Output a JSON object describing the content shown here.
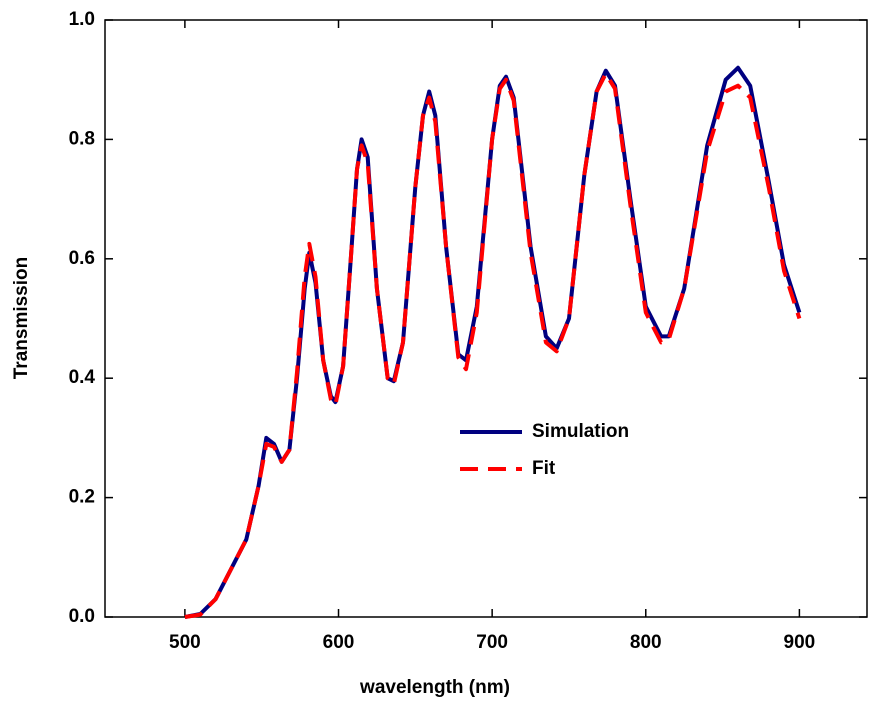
{
  "chart_data": {
    "type": "line",
    "xlabel": "wavelength (nm)",
    "ylabel": "Transmission",
    "x": [
      500,
      510,
      520,
      530,
      540,
      548,
      553,
      558,
      563,
      568,
      573,
      578,
      581,
      585,
      590,
      595,
      598,
      603,
      608,
      612,
      615,
      619,
      625,
      632,
      636,
      642,
      650,
      655,
      659,
      663,
      670,
      678,
      683,
      690,
      700,
      705,
      709,
      714,
      725,
      735,
      742,
      750,
      760,
      768,
      774,
      780,
      790,
      800,
      810,
      815,
      825,
      840,
      852,
      860,
      868,
      880,
      890,
      900
    ],
    "series": [
      {
        "name": "Simulation",
        "color": "#000080",
        "dash": false,
        "values": [
          0,
          0.005,
          0.03,
          0.08,
          0.13,
          0.22,
          0.3,
          0.29,
          0.26,
          0.28,
          0.4,
          0.55,
          0.61,
          0.56,
          0.43,
          0.37,
          0.36,
          0.42,
          0.6,
          0.75,
          0.8,
          0.77,
          0.55,
          0.4,
          0.395,
          0.46,
          0.72,
          0.84,
          0.88,
          0.84,
          0.62,
          0.44,
          0.43,
          0.52,
          0.8,
          0.89,
          0.905,
          0.87,
          0.62,
          0.47,
          0.45,
          0.5,
          0.74,
          0.88,
          0.915,
          0.89,
          0.7,
          0.52,
          0.47,
          0.47,
          0.55,
          0.79,
          0.9,
          0.92,
          0.89,
          0.73,
          0.59,
          0.51
        ]
      },
      {
        "name": "Fit",
        "color": "#ff0000",
        "dash": true,
        "values": [
          0,
          0.004,
          0.03,
          0.08,
          0.13,
          0.22,
          0.29,
          0.285,
          0.26,
          0.28,
          0.41,
          0.57,
          0.625,
          0.57,
          0.43,
          0.365,
          0.355,
          0.42,
          0.6,
          0.75,
          0.79,
          0.76,
          0.55,
          0.4,
          0.39,
          0.46,
          0.72,
          0.84,
          0.87,
          0.83,
          0.62,
          0.435,
          0.415,
          0.51,
          0.8,
          0.885,
          0.9,
          0.865,
          0.61,
          0.46,
          0.445,
          0.5,
          0.74,
          0.88,
          0.91,
          0.885,
          0.69,
          0.51,
          0.46,
          0.465,
          0.55,
          0.78,
          0.88,
          0.89,
          0.87,
          0.72,
          0.58,
          0.5
        ]
      }
    ],
    "xlim": [
      448,
      944
    ],
    "ylim": [
      0,
      1
    ],
    "xticks": [
      500,
      600,
      700,
      800,
      900
    ],
    "yticks": [
      {
        "value": 0,
        "label": "0.0"
      },
      0.2,
      0.4,
      0.6,
      0.8,
      {
        "value": 1,
        "label": "1.0"
      }
    ],
    "grid": false,
    "legend": "center-right"
  }
}
